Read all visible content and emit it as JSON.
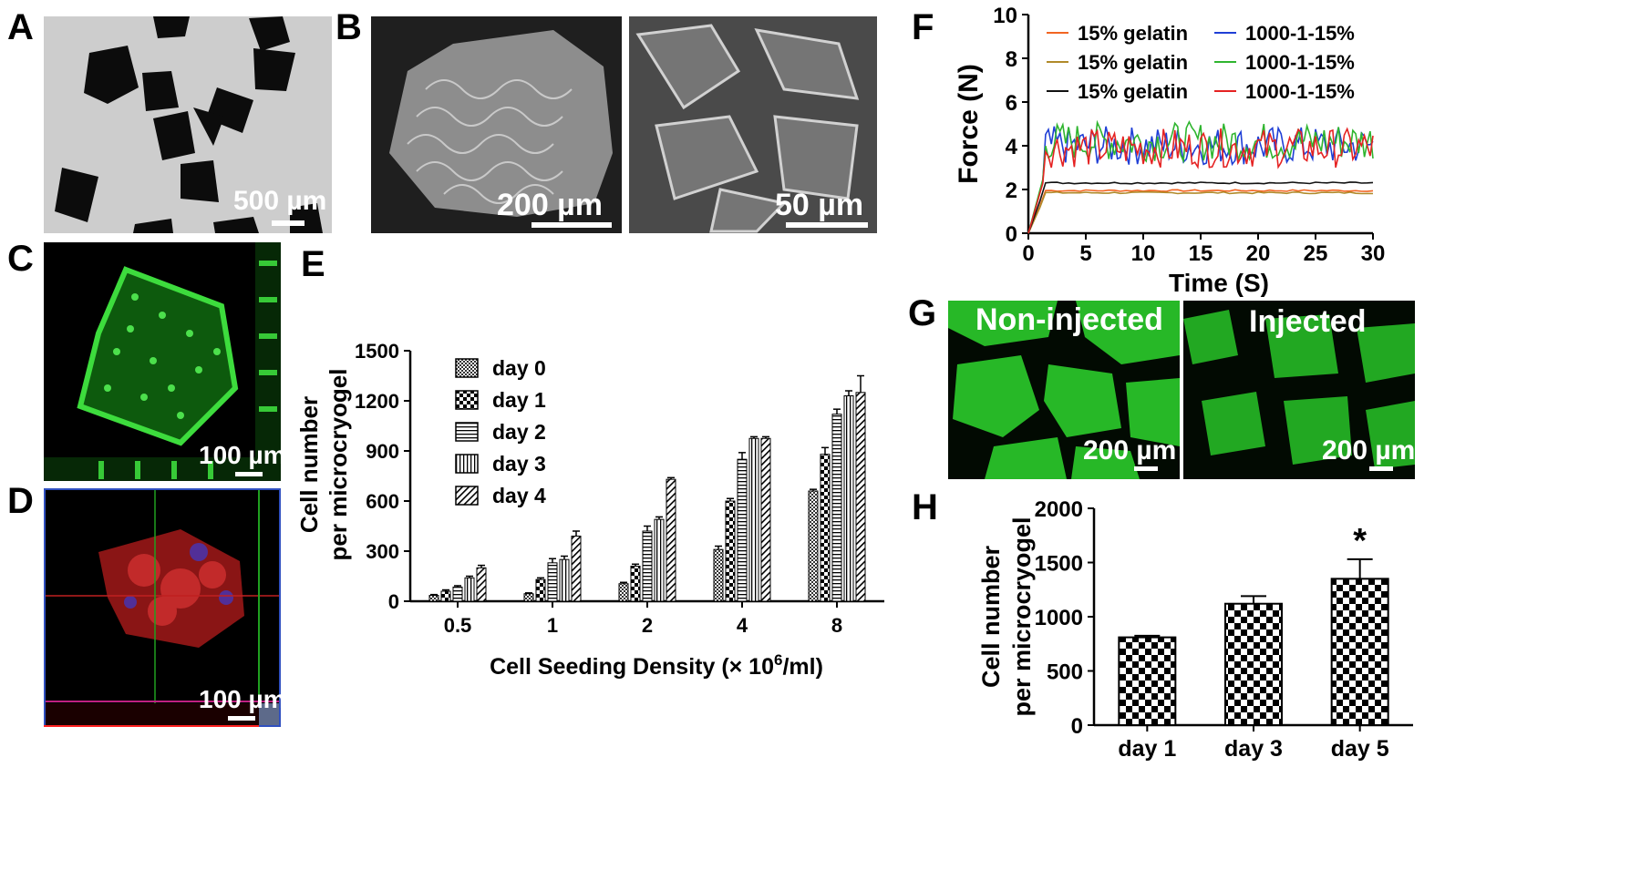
{
  "panels": {
    "A": {
      "label": "A",
      "scale": "500 µm"
    },
    "B": {
      "label": "B",
      "scale_left": "200 µm",
      "scale_right": "50 µm"
    },
    "C": {
      "label": "C",
      "scale": "100 µm"
    },
    "D": {
      "label": "D",
      "scale": "100 µm"
    },
    "E": {
      "label": "E"
    },
    "F": {
      "label": "F"
    },
    "G": {
      "label": "G",
      "left_title": "Non-injected",
      "right_title": "Injected",
      "scale_left": "200 µm",
      "scale_right": "200 µm"
    },
    "H": {
      "label": "H"
    }
  },
  "chart_data": [
    {
      "id": "E",
      "type": "bar",
      "categories": [
        "0.5",
        "1",
        "2",
        "4",
        "8"
      ],
      "xlabel_main": "Cell Seeding Density (× 10",
      "xlabel_sup": "6",
      "xlabel_tail": "/ml)",
      "ylabel": [
        "Cell number",
        "per microcryogel"
      ],
      "ylim": [
        0,
        1500
      ],
      "yticks": [
        "0",
        "300",
        "600",
        "900",
        "1200",
        "1500"
      ],
      "legend_position": "top-left",
      "series": [
        {
          "name": "day 0",
          "pattern": "dots",
          "values": [
            35,
            45,
            105,
            310,
            660
          ],
          "errors": [
            5,
            5,
            8,
            20,
            10
          ]
        },
        {
          "name": "day 1",
          "pattern": "checker",
          "values": [
            60,
            130,
            210,
            600,
            880
          ],
          "errors": [
            8,
            10,
            12,
            15,
            40
          ]
        },
        {
          "name": "day 2",
          "pattern": "hlines",
          "values": [
            85,
            230,
            420,
            850,
            1120
          ],
          "errors": [
            8,
            25,
            30,
            40,
            30
          ]
        },
        {
          "name": "day 3",
          "pattern": "vlines",
          "values": [
            140,
            250,
            490,
            975,
            1230
          ],
          "errors": [
            10,
            20,
            15,
            10,
            30
          ]
        },
        {
          "name": "day 4",
          "pattern": "diag",
          "values": [
            200,
            390,
            730,
            975,
            1250
          ],
          "errors": [
            15,
            30,
            10,
            10,
            100
          ]
        }
      ]
    },
    {
      "id": "F",
      "type": "line",
      "xlabel": "Time (S)",
      "ylabel": "Force (N)",
      "xlim": [
        0,
        30
      ],
      "ylim": [
        0,
        10
      ],
      "xticks": [
        "0",
        "5",
        "10",
        "15",
        "20",
        "25",
        "30"
      ],
      "yticks": [
        "0",
        "2",
        "4",
        "6",
        "8",
        "10"
      ],
      "legend_position": "top",
      "series": [
        {
          "name": "15% gelatin",
          "color": "#f26522",
          "level": 1.95
        },
        {
          "name": "15% gelatin",
          "color": "#b08a2a",
          "level": 1.85
        },
        {
          "name": "15% gelatin",
          "color": "#111111",
          "level": 2.3
        },
        {
          "name": "1000-1-15%",
          "color": "#1f3fd6",
          "level": 4.0
        },
        {
          "name": "1000-1-15%",
          "color": "#2fb52f",
          "level": 4.2
        },
        {
          "name": "1000-1-15%",
          "color": "#e52222",
          "level": 3.9
        }
      ]
    },
    {
      "id": "H",
      "type": "bar",
      "categories": [
        "day 1",
        "day 3",
        "day 5"
      ],
      "values": [
        810,
        1120,
        1350
      ],
      "errors": [
        15,
        70,
        180
      ],
      "ylabel": [
        "Cell number",
        "per microcryogel"
      ],
      "ylim": [
        0,
        2000
      ],
      "yticks": [
        "0",
        "500",
        "1000",
        "1500",
        "2000"
      ],
      "annotation": "*"
    }
  ]
}
